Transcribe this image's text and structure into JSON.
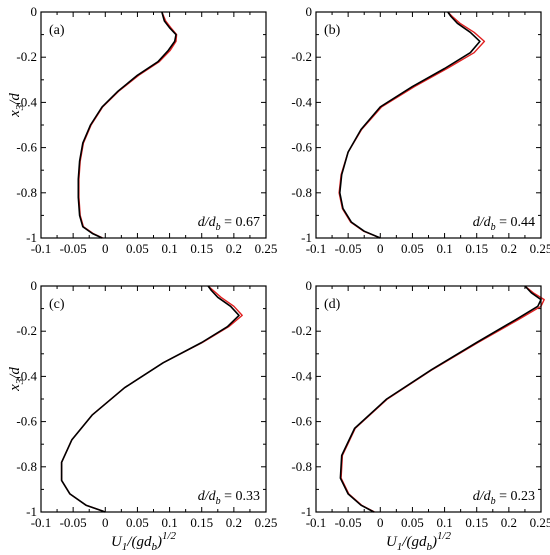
{
  "chart_data": [
    {
      "type": "line",
      "panel_label": "(a)",
      "ratio_text": {
        "var": "d/d",
        "sub": "b",
        "rest": " = 0.67"
      },
      "xlim": [
        -0.1,
        0.25
      ],
      "ylim": [
        -1,
        0
      ],
      "x_ticks": [
        "-0.1",
        "-0.05",
        "0",
        "0.05",
        "0.1",
        "0.15",
        "0.2",
        "0.25"
      ],
      "y_ticks": [
        "0",
        "-0.2",
        "-0.4",
        "-0.6",
        "-0.8",
        "-1"
      ],
      "xlabel": "",
      "ylabel": {
        "main": "x",
        "sub": "3",
        "rest": "/d"
      },
      "series": [
        {
          "color": "#000000",
          "points": [
            [
              0.088,
              0
            ],
            [
              0.09,
              -0.02
            ],
            [
              0.092,
              -0.04
            ],
            [
              0.1,
              -0.07
            ],
            [
              0.11,
              -0.1
            ],
            [
              0.108,
              -0.13
            ],
            [
              0.098,
              -0.17
            ],
            [
              0.082,
              -0.22
            ],
            [
              0.05,
              -0.28
            ],
            [
              0.02,
              -0.35
            ],
            [
              -0.005,
              -0.42
            ],
            [
              -0.023,
              -0.5
            ],
            [
              -0.035,
              -0.58
            ],
            [
              -0.04,
              -0.66
            ],
            [
              -0.042,
              -0.74
            ],
            [
              -0.042,
              -0.82
            ],
            [
              -0.04,
              -0.9
            ],
            [
              -0.035,
              -0.95
            ],
            [
              -0.02,
              -0.98
            ],
            [
              -0.005,
              -1.0
            ]
          ]
        },
        {
          "color": "#e02020",
          "points": [
            [
              0.088,
              0
            ],
            [
              0.091,
              -0.02
            ],
            [
              0.094,
              -0.04
            ],
            [
              0.102,
              -0.07
            ],
            [
              0.111,
              -0.1
            ],
            [
              0.11,
              -0.13
            ],
            [
              0.101,
              -0.17
            ],
            [
              0.084,
              -0.22
            ],
            [
              0.052,
              -0.28
            ],
            [
              0.021,
              -0.35
            ],
            [
              -0.004,
              -0.42
            ],
            [
              -0.022,
              -0.5
            ],
            [
              -0.034,
              -0.58
            ],
            [
              -0.039,
              -0.66
            ],
            [
              -0.041,
              -0.74
            ],
            [
              -0.041,
              -0.82
            ],
            [
              -0.039,
              -0.9
            ],
            [
              -0.034,
              -0.95
            ],
            [
              -0.019,
              -0.98
            ],
            [
              -0.004,
              -1.0
            ]
          ]
        }
      ]
    },
    {
      "type": "line",
      "panel_label": "(b)",
      "ratio_text": {
        "var": "d/d",
        "sub": "b",
        "rest": " = 0.44"
      },
      "xlim": [
        -0.1,
        0.25
      ],
      "ylim": [
        -1,
        0
      ],
      "x_ticks": [
        "-0.1",
        "-0.05",
        "0",
        "0.05",
        "0.1",
        "0.15",
        "0.2",
        "0.25"
      ],
      "y_ticks": [
        "0",
        "-0.2",
        "-0.4",
        "-0.6",
        "-0.8",
        "-1"
      ],
      "xlabel": "",
      "ylabel": null,
      "series": [
        {
          "color": "#000000",
          "points": [
            [
              0.105,
              0
            ],
            [
              0.11,
              -0.02
            ],
            [
              0.12,
              -0.05
            ],
            [
              0.14,
              -0.09
            ],
            [
              0.155,
              -0.13
            ],
            [
              0.14,
              -0.18
            ],
            [
              0.1,
              -0.25
            ],
            [
              0.05,
              -0.33
            ],
            [
              0.0,
              -0.42
            ],
            [
              -0.03,
              -0.52
            ],
            [
              -0.05,
              -0.62
            ],
            [
              -0.06,
              -0.72
            ],
            [
              -0.063,
              -0.8
            ],
            [
              -0.058,
              -0.87
            ],
            [
              -0.045,
              -0.93
            ],
            [
              -0.025,
              -0.97
            ],
            [
              0.0,
              -1.0
            ]
          ]
        },
        {
          "color": "#e02020",
          "points": [
            [
              0.105,
              0
            ],
            [
              0.112,
              -0.02
            ],
            [
              0.124,
              -0.05
            ],
            [
              0.146,
              -0.09
            ],
            [
              0.162,
              -0.13
            ],
            [
              0.146,
              -0.18
            ],
            [
              0.104,
              -0.25
            ],
            [
              0.053,
              -0.33
            ],
            [
              0.002,
              -0.42
            ],
            [
              -0.029,
              -0.52
            ],
            [
              -0.05,
              -0.62
            ],
            [
              -0.061,
              -0.72
            ],
            [
              -0.064,
              -0.8
            ],
            [
              -0.059,
              -0.87
            ],
            [
              -0.046,
              -0.93
            ],
            [
              -0.026,
              -0.97
            ],
            [
              0.0,
              -1.0
            ]
          ]
        }
      ]
    },
    {
      "type": "line",
      "panel_label": "(c)",
      "ratio_text": {
        "var": "d/d",
        "sub": "b",
        "rest": " = 0.33"
      },
      "xlim": [
        -0.1,
        0.25
      ],
      "ylim": [
        -1,
        0
      ],
      "x_ticks": [
        "-0.1",
        "-0.05",
        "0",
        "0.05",
        "0.1",
        "0.15",
        "0.2",
        "0.25"
      ],
      "y_ticks": [
        "0",
        "-0.2",
        "-0.4",
        "-0.6",
        "-0.8",
        "-1"
      ],
      "xlabel": {
        "main": "U",
        "sub": "1",
        "rest": "/(gd",
        "sub2": "b",
        "rest2": ")",
        "sup": "1/2"
      },
      "ylabel": {
        "main": "x",
        "sub": "3",
        "rest": "/d"
      },
      "series": [
        {
          "color": "#000000",
          "points": [
            [
              0.16,
              0
            ],
            [
              0.165,
              -0.02
            ],
            [
              0.175,
              -0.05
            ],
            [
              0.195,
              -0.09
            ],
            [
              0.208,
              -0.13
            ],
            [
              0.19,
              -0.18
            ],
            [
              0.15,
              -0.25
            ],
            [
              0.09,
              -0.34
            ],
            [
              0.03,
              -0.45
            ],
            [
              -0.02,
              -0.57
            ],
            [
              -0.052,
              -0.68
            ],
            [
              -0.068,
              -0.78
            ],
            [
              -0.068,
              -0.86
            ],
            [
              -0.055,
              -0.92
            ],
            [
              -0.03,
              -0.97
            ],
            [
              0.0,
              -1.0
            ]
          ]
        },
        {
          "color": "#e02020",
          "points": [
            [
              0.16,
              0
            ],
            [
              0.168,
              -0.02
            ],
            [
              0.18,
              -0.05
            ],
            [
              0.2,
              -0.09
            ],
            [
              0.213,
              -0.13
            ],
            [
              0.192,
              -0.18
            ],
            [
              0.151,
              -0.25
            ],
            [
              0.09,
              -0.34
            ],
            [
              0.03,
              -0.45
            ],
            [
              -0.02,
              -0.57
            ],
            [
              -0.052,
              -0.68
            ],
            [
              -0.068,
              -0.78
            ],
            [
              -0.068,
              -0.86
            ],
            [
              -0.055,
              -0.92
            ],
            [
              -0.03,
              -0.97
            ],
            [
              0.0,
              -1.0
            ]
          ]
        }
      ]
    },
    {
      "type": "line",
      "panel_label": "(d)",
      "ratio_text": {
        "var": "d/d",
        "sub": "b",
        "rest": " = 0.23"
      },
      "xlim": [
        -0.1,
        0.25
      ],
      "ylim": [
        -1,
        0
      ],
      "x_ticks": [
        "-0.1",
        "-0.05",
        "0",
        "0.05",
        "0.1",
        "0.15",
        "0.2",
        "0.25"
      ],
      "y_ticks": [
        "0",
        "-0.2",
        "-0.4",
        "-0.6",
        "-0.8",
        "-1"
      ],
      "xlabel": {
        "main": "U",
        "sub": "1",
        "rest": "/(gd",
        "sub2": "b",
        "rest2": ")",
        "sup": "1/2"
      },
      "ylabel": null,
      "series": [
        {
          "color": "#000000",
          "points": [
            [
              0.225,
              0
            ],
            [
              0.235,
              -0.03
            ],
            [
              0.25,
              -0.06
            ],
            [
              0.245,
              -0.09
            ],
            [
              0.21,
              -0.15
            ],
            [
              0.15,
              -0.25
            ],
            [
              0.08,
              -0.37
            ],
            [
              0.01,
              -0.5
            ],
            [
              -0.04,
              -0.63
            ],
            [
              -0.06,
              -0.75
            ],
            [
              -0.062,
              -0.85
            ],
            [
              -0.05,
              -0.92
            ],
            [
              -0.03,
              -0.97
            ],
            [
              -0.01,
              -1.0
            ]
          ]
        },
        {
          "color": "#e02020",
          "points": [
            [
              0.225,
              0
            ],
            [
              0.238,
              -0.03
            ],
            [
              0.255,
              -0.06
            ],
            [
              0.25,
              -0.09
            ],
            [
              0.214,
              -0.15
            ],
            [
              0.152,
              -0.25
            ],
            [
              0.081,
              -0.37
            ],
            [
              0.011,
              -0.5
            ],
            [
              -0.039,
              -0.63
            ],
            [
              -0.059,
              -0.75
            ],
            [
              -0.061,
              -0.85
            ],
            [
              -0.049,
              -0.92
            ],
            [
              -0.029,
              -0.97
            ],
            [
              -0.009,
              -1.0
            ]
          ]
        }
      ]
    }
  ]
}
